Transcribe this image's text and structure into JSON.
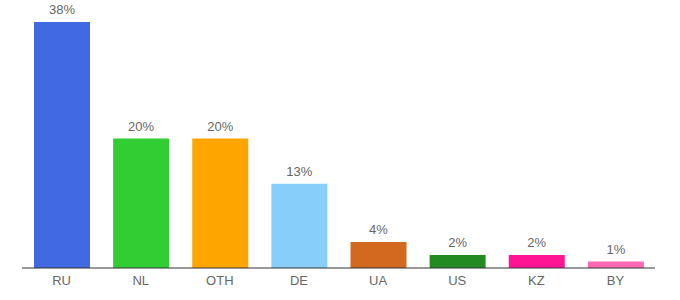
{
  "chart_data": {
    "type": "bar",
    "categories": [
      "RU",
      "NL",
      "OTH",
      "DE",
      "UA",
      "US",
      "KZ",
      "BY"
    ],
    "values": [
      38,
      20,
      20,
      13,
      4,
      2,
      2,
      1
    ],
    "value_labels": [
      "38%",
      "20%",
      "20%",
      "13%",
      "4%",
      "2%",
      "2%",
      "1%"
    ],
    "colors": [
      "#4169e1",
      "#32cd32",
      "#ffa500",
      "#87cefa",
      "#d2691e",
      "#228b22",
      "#ff1493",
      "#ff69b4"
    ],
    "data_labels": true,
    "tick_labels": "x",
    "grid": false
  }
}
